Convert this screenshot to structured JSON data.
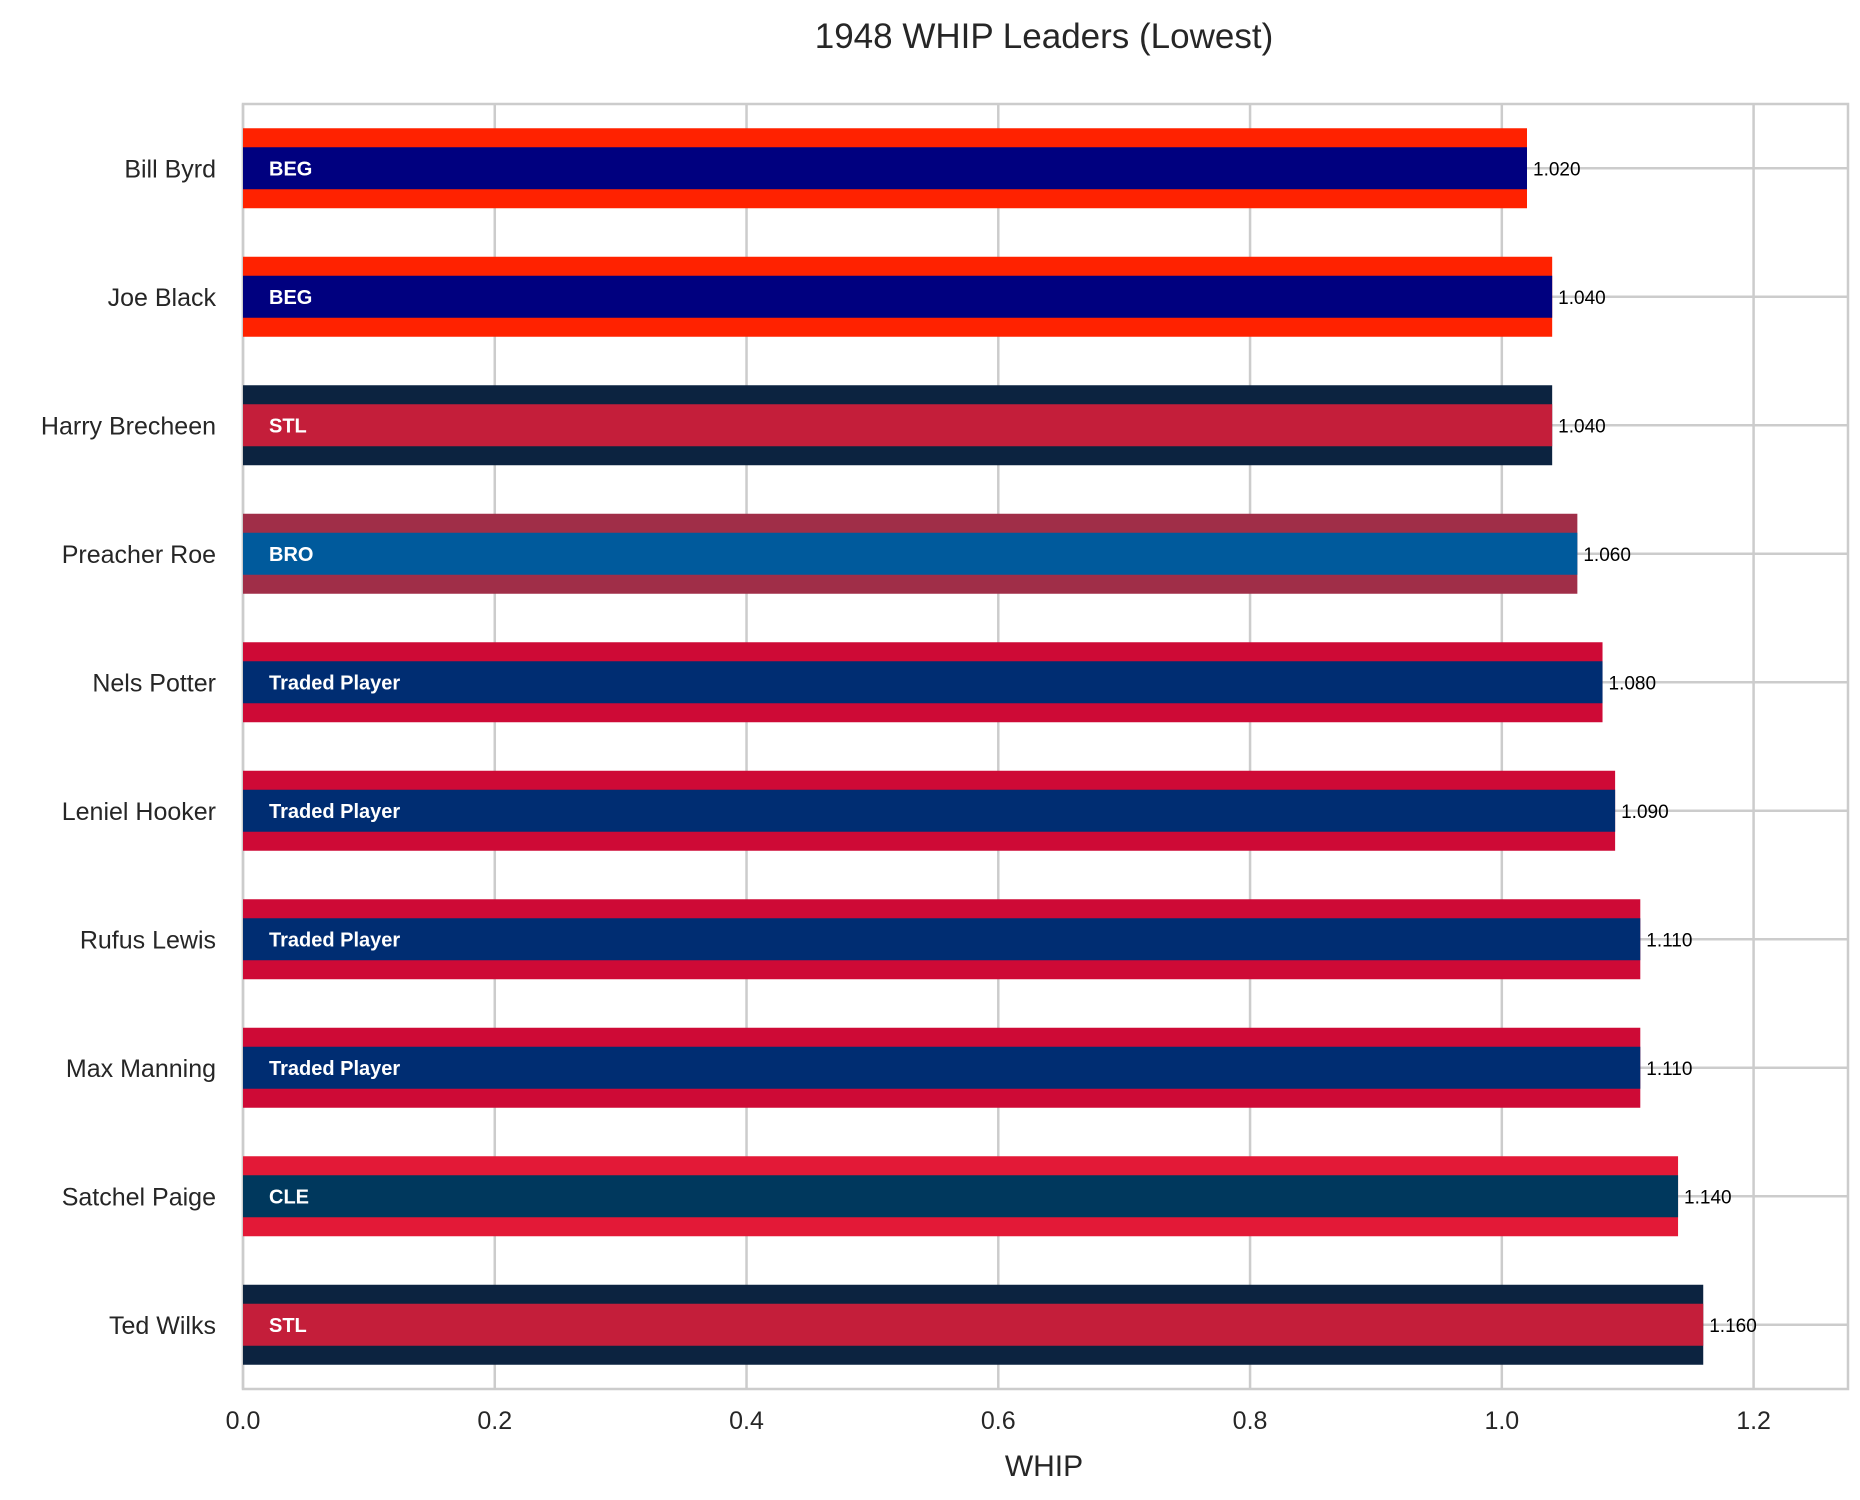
{
  "chart_data": {
    "type": "bar",
    "orientation": "horizontal",
    "title": "1948 WHIP Leaders (Lowest)",
    "xlabel": "WHIP",
    "ylabel": "",
    "xlim": [
      0,
      1.275
    ],
    "xticks": [
      "0.0",
      "0.2",
      "0.4",
      "0.6",
      "0.8",
      "1.0",
      "1.2"
    ],
    "grid": true,
    "categories": [
      "Bill Byrd",
      "Joe Black",
      "Harry Brecheen",
      "Preacher Roe",
      "Nels Potter",
      "Leniel Hooker",
      "Rufus Lewis",
      "Max Manning",
      "Satchel Paige",
      "Ted Wilks"
    ],
    "values": [
      1.02,
      1.04,
      1.04,
      1.06,
      1.08,
      1.09,
      1.11,
      1.11,
      1.14,
      1.16
    ],
    "value_labels": [
      "1.020",
      "1.040",
      "1.040",
      "1.060",
      "1.080",
      "1.090",
      "1.110",
      "1.110",
      "1.140",
      "1.160"
    ],
    "teams": [
      "BEG",
      "BEG",
      "STL",
      "BRO",
      "Traded Player",
      "Traded Player",
      "Traded Player",
      "Traded Player",
      "CLE",
      "STL"
    ],
    "outer_colors": [
      "#ff2200",
      "#ff2200",
      "#0c2340",
      "#a02e48",
      "#ce0a36",
      "#ce0a36",
      "#ce0a36",
      "#ce0a36",
      "#e31937",
      "#0c2340"
    ],
    "inner_colors": [
      "#00007f",
      "#00007f",
      "#c41e3a",
      "#005a9c",
      "#002d72",
      "#002d72",
      "#002d72",
      "#002d72",
      "#00385d",
      "#c41e3a"
    ]
  }
}
